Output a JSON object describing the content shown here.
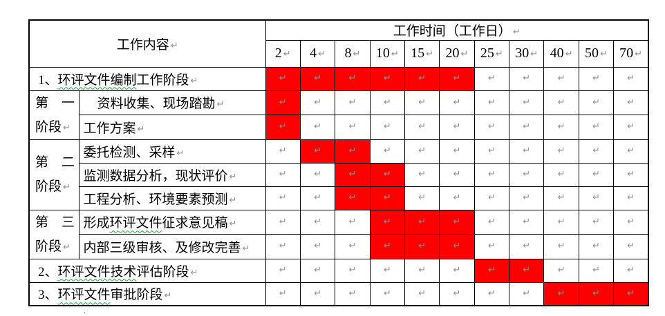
{
  "table": {
    "pilcrow": "↵",
    "stray_dot": ".",
    "colors": {
      "bar_fill": "#ff0000",
      "border": "#000000",
      "formatting_mark": "#8f8f8f",
      "spellcheck_underline": "#1fa33c"
    },
    "header": {
      "work_content": "工作内容",
      "work_time": "工作时间（工作日）",
      "days": [
        "2",
        "4",
        "8",
        "10",
        "15",
        "20",
        "25",
        "30",
        "40",
        "50",
        "70"
      ]
    },
    "rows": [
      {
        "span2": true,
        "label": "1、环评文件编制工作阶段",
        "underline": "环评文件编制",
        "red": [
          0,
          1,
          2,
          3,
          4,
          5
        ]
      },
      {
        "stage": {
          "lines": [
            "第　一",
            "阶段"
          ],
          "rowspan": 2
        },
        "label": "资料收集、现场踏勘",
        "indent": true,
        "red": [
          0
        ]
      },
      {
        "label": "工作方案",
        "red": [
          0
        ]
      },
      {
        "stage": {
          "lines": [
            "第　二",
            "阶段"
          ],
          "rowspan": 3
        },
        "label": "委托检测、采样",
        "red": [
          1,
          2
        ]
      },
      {
        "label": "监测数据分析，现状评价",
        "red": [
          2,
          3
        ]
      },
      {
        "label": "工程分析、环境要素预测",
        "red": [
          2,
          3
        ]
      },
      {
        "stage": {
          "lines": [
            "第　三",
            "阶段"
          ],
          "rowspan": 2
        },
        "label": "形成环评文件征求意见稿",
        "underline": "环评文件",
        "red": [
          3,
          4,
          5
        ]
      },
      {
        "label": "内部三级审核、及修改完善",
        "red": [
          3,
          4,
          5
        ]
      },
      {
        "span2": true,
        "label": "2、环评文件技术评估阶段",
        "underline": "环评文件技术",
        "red": [
          6,
          7
        ]
      },
      {
        "span2": true,
        "label": "3、环评文件审批阶段",
        "underline": "环评文件",
        "red": [
          8,
          9,
          10
        ]
      }
    ]
  }
}
